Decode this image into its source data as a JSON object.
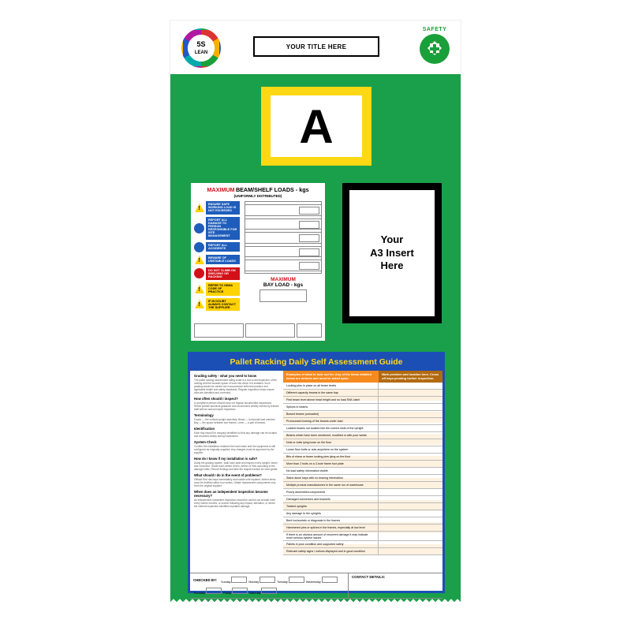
{
  "colors": {
    "board_green": "#1aa04a",
    "frame_yellow": "#ffd814",
    "guide_blue": "#1b4fb5",
    "guide_orange": "#f58a1f",
    "guide_brown_orange": "#b36a0f",
    "safety_green": "#1aa03a",
    "red": "#d31018",
    "sign_blue": "#1e5dbb",
    "hazard_yellow": "#ffd200"
  },
  "header": {
    "logo_main": "5S",
    "logo_sub": "LEAN",
    "title_placeholder": "YOUR TITLE HERE",
    "safety_label": "SAFETY"
  },
  "letter_card": {
    "letter": "A"
  },
  "load_sign": {
    "title_red": "MAXIMUM",
    "title_black": "BEAM/SHELF LOADS - kgs",
    "subtitle": "(UNIFORMLY DISTRIBUTED)",
    "bay_title_red": "MAXIMUM",
    "bay_title_black": "BAY LOAD - kgs",
    "rows": [
      {
        "icon": "tri",
        "style": "",
        "text": "ENSURE SAFE WORKING LOAD IS NOT EXCEEDED"
      },
      {
        "icon": "blue",
        "style": "",
        "text": "REPORT ALL DAMAGE TO PERSON RESPONSIBLE FOR SITE MANAGEMENT"
      },
      {
        "icon": "blue",
        "style": "",
        "text": "REPORT ALL ACCIDENTS"
      },
      {
        "icon": "tri",
        "style": "",
        "text": "BEWARE OF UNSTABLE LOADS"
      },
      {
        "icon": "red",
        "style": "lt-red",
        "text": "DO NOT CLIMB ON SHELVING OR RACKING"
      },
      {
        "icon": "tri",
        "style": "lt-yellow",
        "text": "REFER TO SEMA CODE OF PRACTICE"
      },
      {
        "icon": "tri",
        "style": "lt-yellow",
        "text": "IF IN DOUBT ALWAYS CONTACT THE SUPPLIER"
      }
    ]
  },
  "a3_insert": {
    "line1": "Your",
    "line2": "A3 Insert",
    "line3": "Here"
  },
  "guide": {
    "title": "Pallet Racking Daily Self Assessment Guide",
    "left_sections": [
      {
        "h": "Grading safety - what you need to know",
        "p": "The pallet racking assessment rating scale is a tool to aid inspection of the racking and the broader space of work into which it is installed. Such grading should be carried out in accordance with best practice and applicable health and safety standards. Regular inspection helps ensure risks are identified and corrected."
      },
      {
        "h": "How often should I inspect?",
        "p": "A competent person should carry out regular documented inspections. SEMA publish technical guidance and recommend weekly checks by trained staff with an annual expert inspection."
      },
      {
        "h": "Terminology",
        "p": "Frame — the vertical upright assembly. Beam — horizontal load member. Bay — the space between two frames. Level — a pair of beams."
      },
      {
        "h": "Identification",
        "p": "Each bay should be uniquely identified so that any damage can be located and recorded clearly during inspections."
      },
      {
        "h": "System Check",
        "p": "Confirm the installation matches the load notice and the equipment is still configured as originally supplied. Any changes must be approved by the supplier."
      },
      {
        "h": "How do I know if my installation is safe?",
        "p": "Using the grading system, walk each aisle and inspect every upright, beam and connector. Grade each defect Green, Amber or Red according to the damage limits. Record findings and take the required action for each grade."
      },
      {
        "h": "What should I do in the event of problems?",
        "p": "Offload Red risk bays immediately and isolate until repaired. Amber items must be rectified within four weeks. Obtain replacement components only from the original supplier."
      },
      {
        "h": "When does an independent inspection become necessary?",
        "p": "An independent competent inspection should be carried out at least once every twelve months, or sooner following any impact, alteration, or where the internal inspection identifies repeated damage."
      }
    ],
    "right_head_left": "Examples of what to look out for. Any of the items detailed below are defects and must be acted upon.",
    "right_head_right": "Mark problem and location here. Cross off bays pending further inspection.",
    "rows": [
      "Locking pins in place on all beam levels",
      "Different capacity beams in the same bay",
      "First beam level above head height and no load SWL label",
      "Splices in beams",
      "Bowed beams (unloaded)",
      "Pronounced bowing of the beams under load",
      "Loaded beams not located into the correct slots of the upright",
      "Beams which have been shortened, modified or with poor welds",
      "Nuts or bolts lying loose on the floor",
      "Loose floor bolts or nuts anywhere on the system",
      "Bits of shear or beam locking pins lying on the floor",
      "More than 2 bolts on a 3-hole frame foot plate",
      "No load safety information visible",
      "Stand alone bays with no bracing information",
      "Multiple product manufacturers in the same run of warehouse",
      "Poorly assembled components",
      "Damaged connectors and brackets",
      "Twisted uprights",
      "Any damage to the uprights",
      "Bent horizontals or diagonals in the frames",
      "Hammered pins or splices in the frames, especially at low level",
      "If there is an obvious amount of recurrent damage it may indicate more serious system issues",
      "Pallets in poor condition and supported safely",
      "Relevant safety signs / notices displayed and in good condition"
    ],
    "footer_checked": "CHECKED BY:",
    "footer_days": [
      "Sunday",
      "Monday",
      "Tuesday",
      "Wednesday",
      "Thursday",
      "Friday",
      "Saturday"
    ],
    "footer_contact": "CONTACT DETAILS:",
    "smallprint": "Please ensure this checklist is a visible prompt only. If you have any doubt at all as to the state of your racking you should immediately contact a suitably qualified person for advice."
  }
}
